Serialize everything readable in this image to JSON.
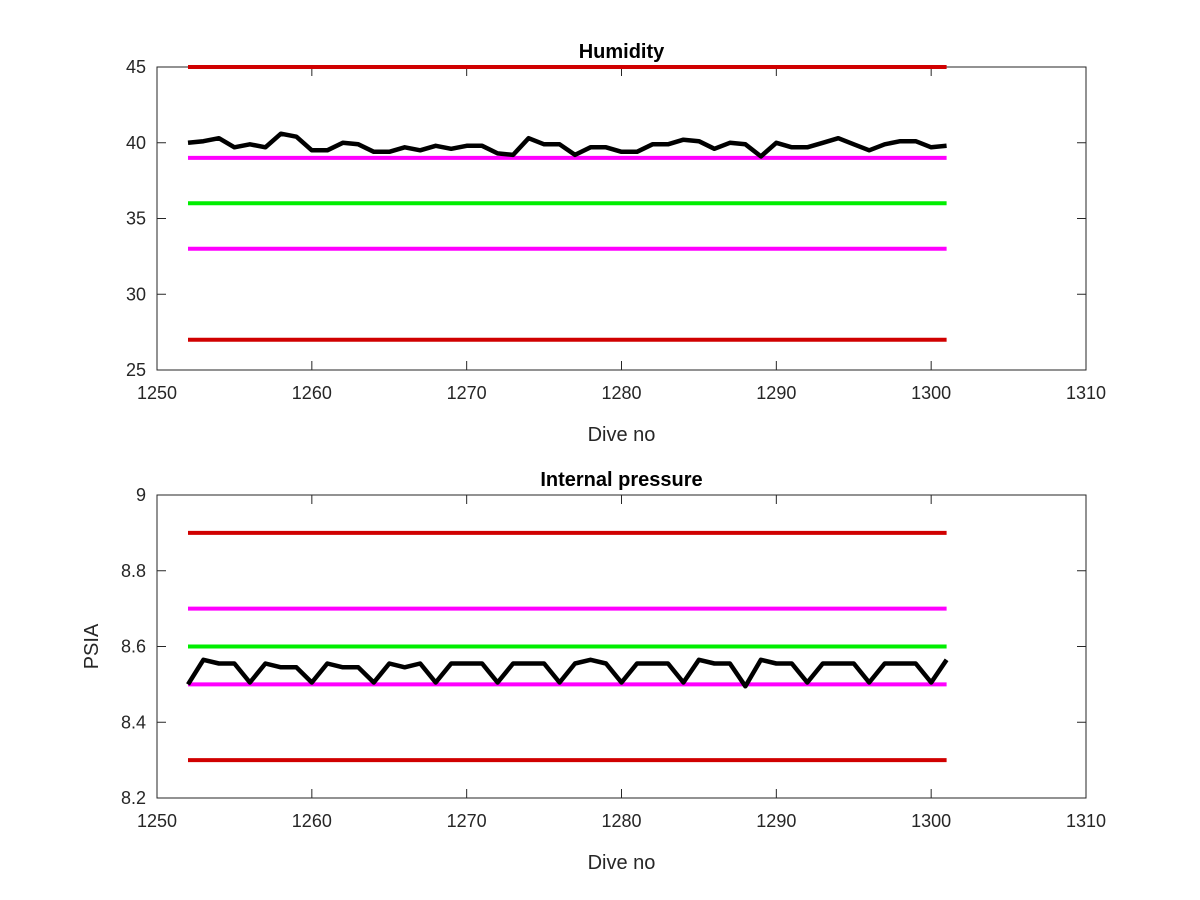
{
  "chart_data": [
    {
      "type": "line",
      "title": "Humidity",
      "xlabel": "Dive no",
      "ylabel": "",
      "xlim": [
        1250,
        1310
      ],
      "ylim": [
        25,
        45
      ],
      "xticks": [
        1250,
        1260,
        1270,
        1280,
        1290,
        1300,
        1310
      ],
      "yticks": [
        25,
        30,
        35,
        40,
        45
      ],
      "xtick_labels": [
        "1250",
        "1260",
        "1270",
        "1280",
        "1290",
        "1300",
        "1310"
      ],
      "ytick_labels": [
        "25",
        "30",
        "35",
        "40",
        "45"
      ],
      "grid": false,
      "series": [
        {
          "kind": "limit",
          "color": "#d00000",
          "x": [
            1252,
            1301
          ],
          "values": [
            45,
            45
          ]
        },
        {
          "kind": "limit",
          "color": "#ff00ff",
          "x": [
            1252,
            1301
          ],
          "values": [
            39,
            39
          ]
        },
        {
          "kind": "limit",
          "color": "#00ee00",
          "x": [
            1252,
            1301
          ],
          "values": [
            36,
            36
          ]
        },
        {
          "kind": "limit",
          "color": "#ff00ff",
          "x": [
            1252,
            1301
          ],
          "values": [
            33,
            33
          ]
        },
        {
          "kind": "limit",
          "color": "#d00000",
          "x": [
            1252,
            1301
          ],
          "values": [
            27,
            27
          ]
        },
        {
          "kind": "data",
          "color": "#000000",
          "x": [
            1252,
            1253,
            1254,
            1255,
            1256,
            1257,
            1258,
            1259,
            1260,
            1261,
            1262,
            1263,
            1264,
            1265,
            1266,
            1267,
            1268,
            1269,
            1270,
            1271,
            1272,
            1273,
            1274,
            1275,
            1276,
            1277,
            1278,
            1279,
            1280,
            1281,
            1282,
            1283,
            1284,
            1285,
            1286,
            1287,
            1288,
            1289,
            1290,
            1291,
            1292,
            1293,
            1294,
            1295,
            1296,
            1297,
            1298,
            1299,
            1300,
            1301
          ],
          "values": [
            40.0,
            40.1,
            40.3,
            39.7,
            39.9,
            39.7,
            40.6,
            40.4,
            39.5,
            39.5,
            40.0,
            39.9,
            39.4,
            39.4,
            39.7,
            39.5,
            39.8,
            39.6,
            39.8,
            39.8,
            39.3,
            39.2,
            40.3,
            39.9,
            39.9,
            39.2,
            39.7,
            39.7,
            39.4,
            39.4,
            39.9,
            39.9,
            40.2,
            40.1,
            39.6,
            40.0,
            39.9,
            39.1,
            40.0,
            39.7,
            39.7,
            40.0,
            40.3,
            39.9,
            39.5,
            39.9,
            40.1,
            40.1,
            39.7,
            39.8
          ]
        }
      ]
    },
    {
      "type": "line",
      "title": "Internal pressure",
      "xlabel": "Dive no",
      "ylabel": "PSIA",
      "xlim": [
        1250,
        1310
      ],
      "ylim": [
        8.2,
        9.0
      ],
      "xticks": [
        1250,
        1260,
        1270,
        1280,
        1290,
        1300,
        1310
      ],
      "yticks": [
        8.2,
        8.4,
        8.6,
        8.8,
        9.0
      ],
      "xtick_labels": [
        "1250",
        "1260",
        "1270",
        "1280",
        "1290",
        "1300",
        "1310"
      ],
      "ytick_labels": [
        "8.2",
        "8.4",
        "8.6",
        "8.8",
        "9"
      ],
      "grid": false,
      "series": [
        {
          "kind": "limit",
          "color": "#d00000",
          "x": [
            1252,
            1301
          ],
          "values": [
            8.9,
            8.9
          ]
        },
        {
          "kind": "limit",
          "color": "#ff00ff",
          "x": [
            1252,
            1301
          ],
          "values": [
            8.7,
            8.7
          ]
        },
        {
          "kind": "limit",
          "color": "#00ee00",
          "x": [
            1252,
            1301
          ],
          "values": [
            8.6,
            8.6
          ]
        },
        {
          "kind": "limit",
          "color": "#ff00ff",
          "x": [
            1252,
            1301
          ],
          "values": [
            8.5,
            8.5
          ]
        },
        {
          "kind": "limit",
          "color": "#d00000",
          "x": [
            1252,
            1301
          ],
          "values": [
            8.3,
            8.3
          ]
        },
        {
          "kind": "data",
          "color": "#000000",
          "x": [
            1252,
            1253,
            1254,
            1255,
            1256,
            1257,
            1258,
            1259,
            1260,
            1261,
            1262,
            1263,
            1264,
            1265,
            1266,
            1267,
            1268,
            1269,
            1270,
            1271,
            1272,
            1273,
            1274,
            1275,
            1276,
            1277,
            1278,
            1279,
            1280,
            1281,
            1282,
            1283,
            1284,
            1285,
            1286,
            1287,
            1288,
            1289,
            1290,
            1291,
            1292,
            1293,
            1294,
            1295,
            1296,
            1297,
            1298,
            1299,
            1300,
            1301
          ],
          "values": [
            8.5,
            8.565,
            8.555,
            8.555,
            8.505,
            8.555,
            8.545,
            8.545,
            8.505,
            8.555,
            8.545,
            8.545,
            8.505,
            8.555,
            8.545,
            8.555,
            8.505,
            8.555,
            8.555,
            8.555,
            8.505,
            8.555,
            8.555,
            8.555,
            8.505,
            8.555,
            8.565,
            8.555,
            8.505,
            8.555,
            8.555,
            8.555,
            8.505,
            8.565,
            8.555,
            8.555,
            8.495,
            8.565,
            8.555,
            8.555,
            8.505,
            8.555,
            8.555,
            8.555,
            8.505,
            8.555,
            8.555,
            8.555,
            8.505,
            8.565
          ]
        }
      ]
    }
  ]
}
